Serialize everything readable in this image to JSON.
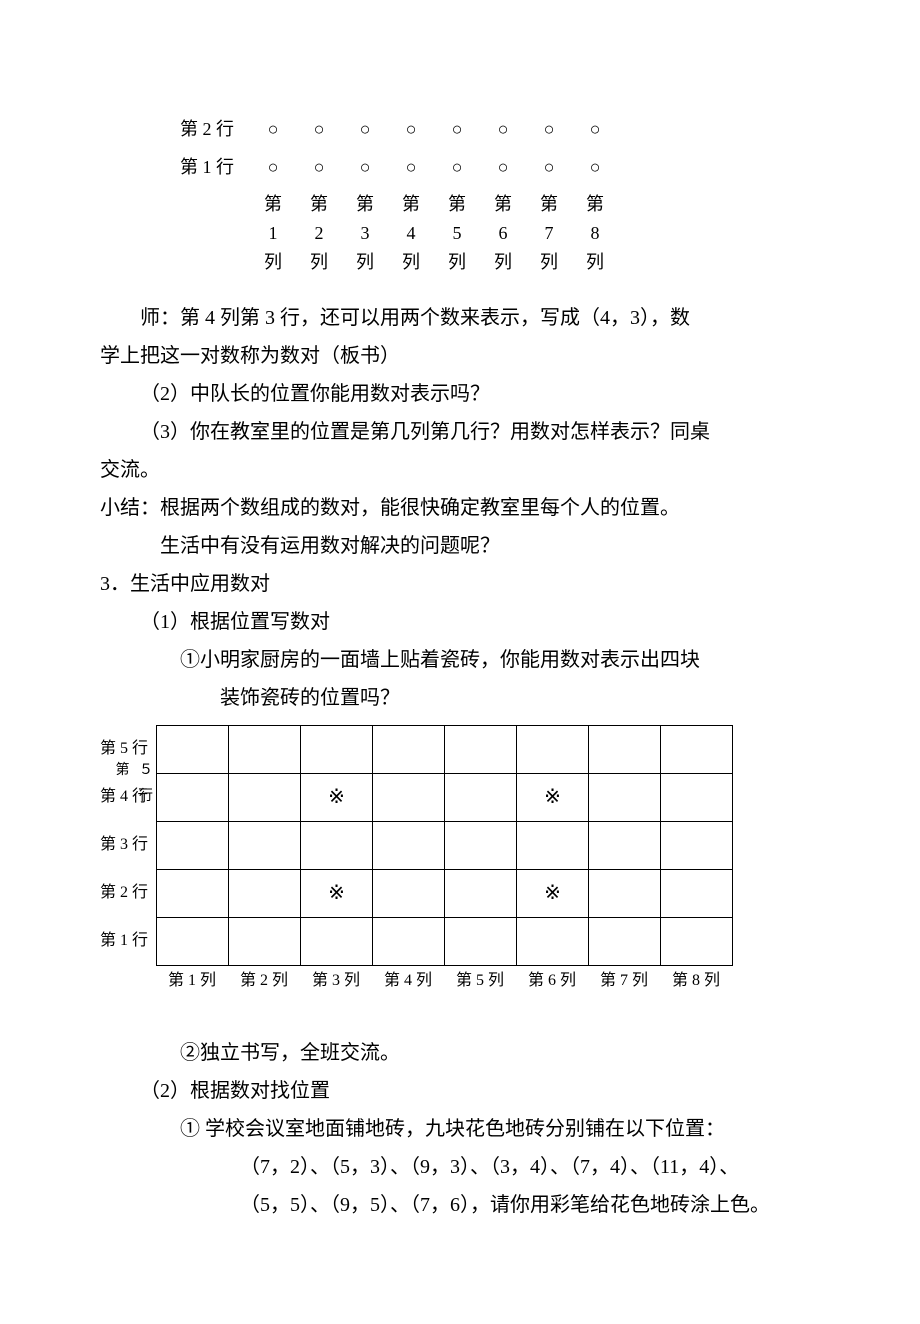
{
  "circle_grid": {
    "row_labels": [
      "第 2 行",
      "第 1 行"
    ],
    "col_labels": [
      "第1列",
      "第2列",
      "第3列",
      "第4列",
      "第5列",
      "第6列",
      "第7列",
      "第8列"
    ],
    "circle": "○",
    "cols": 8,
    "rows": 2
  },
  "text": {
    "shi_line1": "师：第 4 列第 3 行，还可以用两个数来表示，写成（4，3），数",
    "shi_line2": "学上把这一对数称为数对（板书）",
    "q2": "（2）中队长的位置你能用数对表示吗？",
    "q3l1": "（3）你在教室里的位置是第几列第几行？用数对怎样表示？同桌",
    "q3l2": "交流。",
    "summary1": "小结：根据两个数组成的数对，能很快确定教室里每个人的位置。",
    "summary2": "生活中有没有运用数对解决的问题呢？",
    "sec3": "3．生活中应用数对",
    "sec3_1": "（1）根据位置写数对",
    "sec3_1_1a": "①小明家厨房的一面墙上贴着瓷砖，你能用数对表示出四块",
    "sec3_1_1b": "装饰瓷砖的位置吗？",
    "sec3_1_2": "②独立书写，全班交流。",
    "sec3_2": "（2）根据数对找位置",
    "sec3_2_1a": "① 学校会议室地面铺地砖，九块花色地砖分别铺在以下位置：",
    "sec3_2_1b": "（7，2）、（5，3）、（9，3）、（3，4）、（7，4）、（11，4）、",
    "sec3_2_1c": "（5，5）、（9，5）、（7，6），请你用彩笔给花色地砖涂上色。"
  },
  "tile_grid": {
    "row_labels_desc": [
      "第 5 行",
      "第 4 行",
      "第 3 行",
      "第 2 行",
      "第 1 行"
    ],
    "ghost_label": "第 ５ 行",
    "col_labels": [
      "第 1 列",
      "第 2 列",
      "第 3 列",
      "第 4 列",
      "第 5 列",
      "第 6 列",
      "第 7 列",
      "第 8 列"
    ],
    "mark": "※",
    "marks": [
      [
        4,
        3
      ],
      [
        4,
        6
      ],
      [
        2,
        3
      ],
      [
        2,
        6
      ]
    ]
  }
}
